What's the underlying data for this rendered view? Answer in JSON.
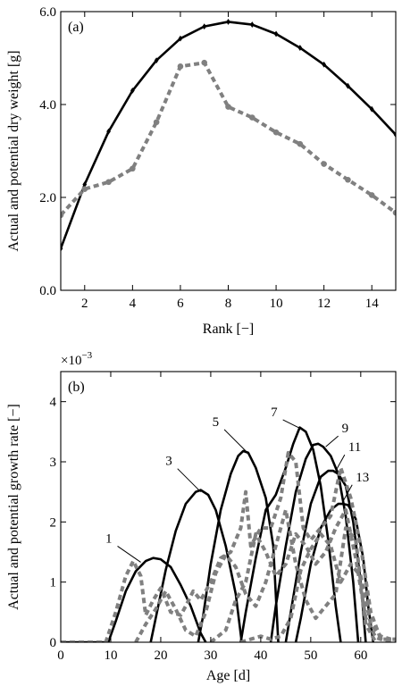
{
  "chart_data": [
    {
      "type": "line",
      "panel_label": "(a)",
      "xlabel": "Rank [−]",
      "ylabel": "Actual and potential dry weight [g]",
      "xlim": [
        1,
        15
      ],
      "ylim": [
        0,
        6
      ],
      "xticks": [
        2,
        4,
        6,
        8,
        10,
        12,
        14
      ],
      "yticks": [
        0,
        2,
        4,
        6
      ],
      "ytick_labels": [
        "0.0",
        "2.0",
        "4.0",
        "6.0"
      ],
      "grid": false,
      "series": [
        {
          "style": "solid",
          "color": "#000000",
          "x": [
            1,
            2,
            3,
            4,
            5,
            6,
            7,
            8,
            9,
            10,
            11,
            12,
            13,
            14,
            15
          ],
          "y": [
            0.9,
            2.28,
            3.42,
            4.3,
            4.95,
            5.42,
            5.68,
            5.78,
            5.72,
            5.52,
            5.22,
            4.86,
            4.4,
            3.9,
            3.35
          ]
        },
        {
          "style": "dashed",
          "color": "#808080",
          "x": [
            1,
            2,
            3,
            4,
            5,
            6,
            7,
            8,
            9,
            10,
            11,
            12,
            13,
            14,
            15
          ],
          "y": [
            1.62,
            2.18,
            2.33,
            2.62,
            3.62,
            4.82,
            4.9,
            3.95,
            3.72,
            3.4,
            3.15,
            2.72,
            2.38,
            2.05,
            1.67
          ]
        }
      ]
    },
    {
      "type": "line",
      "panel_label": "(b)",
      "xlabel": "Age [d]",
      "ylabel": "Actual and potential growth rate [−]",
      "y_multiplier": "×10",
      "y_multiplier_exp": "−3",
      "xlim": [
        0,
        67
      ],
      "ylim": [
        0,
        4.5
      ],
      "xticks": [
        0,
        10,
        20,
        30,
        40,
        50,
        60
      ],
      "yticks": [
        0,
        1,
        2,
        3,
        4
      ],
      "grid": false,
      "annotations": [
        {
          "text": "1",
          "x": 16,
          "y": 1.33
        },
        {
          "text": "3",
          "x": 28,
          "y": 2.5
        },
        {
          "text": "5",
          "x": 37,
          "y": 3.18
        },
        {
          "text": "7",
          "x": 48,
          "y": 3.55
        },
        {
          "text": "9",
          "x": 53,
          "y": 3.25
        },
        {
          "text": "11",
          "x": 55,
          "y": 2.85
        },
        {
          "text": "13",
          "x": 56.5,
          "y": 2.35
        }
      ],
      "series": [
        {
          "style": "solid",
          "color": "#000000",
          "x": [
            0,
            9.5,
            11,
            13,
            15,
            17,
            18.5,
            20,
            22,
            24,
            26,
            28,
            29
          ],
          "y": [
            0,
            0,
            0.35,
            0.85,
            1.18,
            1.35,
            1.4,
            1.38,
            1.25,
            0.95,
            0.6,
            0.15,
            0
          ]
        },
        {
          "style": "solid",
          "color": "#000000",
          "x": [
            18,
            19,
            21,
            23,
            25,
            27,
            28,
            29.5,
            31,
            33,
            35,
            36.2
          ],
          "y": [
            0,
            0.4,
            1.2,
            1.85,
            2.3,
            2.5,
            2.53,
            2.45,
            2.2,
            1.6,
            0.8,
            0
          ]
        },
        {
          "style": "solid",
          "color": "#000000",
          "x": [
            27.5,
            28.5,
            30,
            32,
            34,
            35.5,
            36.5,
            37.5,
            39,
            41,
            42.5,
            43.5
          ],
          "y": [
            0,
            0.45,
            1.3,
            2.2,
            2.8,
            3.1,
            3.18,
            3.15,
            2.9,
            2.4,
            1.6,
            0
          ]
        },
        {
          "style": "solid",
          "color": "#000000",
          "x": [
            36,
            37,
            39,
            41,
            43,
            45,
            46.5,
            47.8,
            49,
            50.5,
            52,
            53.5,
            55,
            56
          ],
          "y": [
            0,
            0.5,
            1.4,
            2.2,
            2.45,
            2.9,
            3.3,
            3.57,
            3.5,
            3.2,
            2.6,
            1.7,
            0.6,
            0
          ]
        },
        {
          "style": "solid",
          "color": "#000000",
          "x": [
            42,
            43,
            45,
            47,
            49,
            50.5,
            51.5,
            52.5,
            54,
            55.5,
            57,
            58.5,
            59.5
          ],
          "y": [
            0,
            0.6,
            1.6,
            2.5,
            3.05,
            3.28,
            3.3,
            3.25,
            3.1,
            2.8,
            2.1,
            1.0,
            0
          ]
        },
        {
          "style": "solid",
          "color": "#000000",
          "x": [
            45,
            46,
            48,
            50,
            52,
            53.5,
            54.5,
            55.5,
            57,
            58.5,
            60,
            61
          ],
          "y": [
            0,
            0.5,
            1.5,
            2.3,
            2.75,
            2.85,
            2.85,
            2.8,
            2.6,
            2.0,
            1.0,
            0
          ]
        },
        {
          "style": "solid",
          "color": "#000000",
          "x": [
            47,
            48,
            50,
            52,
            54,
            55.5,
            56.5,
            57.5,
            59,
            60.5,
            61.5,
            62.5
          ],
          "y": [
            0,
            0.4,
            1.3,
            1.9,
            2.2,
            2.3,
            2.3,
            2.28,
            2.05,
            1.4,
            0.6,
            0
          ]
        },
        {
          "style": "dashed",
          "color": "#808080",
          "x": [
            0,
            9,
            11,
            13,
            14.5,
            16,
            17,
            18.5,
            20,
            22,
            24,
            25,
            26.5,
            28,
            30,
            32,
            34,
            36,
            37,
            38,
            40,
            42,
            44,
            45.5,
            47,
            48.5,
            50,
            52,
            54,
            56,
            58,
            60,
            62,
            64,
            67
          ],
          "y": [
            0,
            0,
            0.5,
            1.1,
            1.35,
            1.1,
            0.45,
            0.7,
            0.9,
            0.5,
            0.45,
            0.6,
            0.85,
            0.7,
            1.0,
            1.4,
            1.5,
            1.9,
            2.5,
            1.6,
            1.9,
            1.9,
            2.4,
            3.15,
            3.0,
            1.9,
            1.7,
            1.9,
            2.1,
            2.9,
            2.4,
            1.6,
            0.5,
            0.05,
            0.05
          ]
        },
        {
          "style": "dashed",
          "color": "#808080",
          "x": [
            15,
            17,
            19,
            21,
            23,
            25,
            27,
            29,
            31,
            33,
            35,
            37,
            39,
            41,
            43,
            45,
            47,
            49,
            51,
            53,
            55,
            57,
            59,
            61,
            63
          ],
          "y": [
            0,
            0.3,
            0.55,
            0.85,
            0.55,
            0.2,
            0.1,
            0.5,
            1.15,
            1.45,
            1.25,
            0.8,
            0.6,
            1.0,
            1.6,
            2.2,
            1.3,
            0.7,
            0.4,
            0.6,
            0.8,
            1.9,
            1.7,
            0.3,
            0
          ]
        },
        {
          "style": "dashed",
          "color": "#808080",
          "x": [
            30,
            33,
            35,
            37,
            39,
            41,
            43,
            45,
            47,
            49,
            51,
            53,
            55,
            57,
            59,
            61,
            63,
            65,
            67
          ],
          "y": [
            0,
            0.2,
            0.7,
            1.0,
            1.8,
            1.5,
            1.1,
            1.3,
            1.8,
            1.6,
            1.3,
            1.5,
            1.9,
            2.2,
            1.4,
            0.4,
            0.08,
            0.02,
            0
          ]
        },
        {
          "style": "dashed",
          "color": "#808080",
          "x": [
            36,
            38,
            40,
            42,
            44,
            46,
            48,
            50,
            52,
            54,
            56,
            58,
            60,
            62,
            64,
            66,
            67
          ],
          "y": [
            0,
            0.05,
            0.1,
            0.05,
            0.1,
            0.4,
            1.2,
            1.55,
            1.8,
            1.6,
            1.0,
            1.3,
            1.1,
            0.3,
            0.1,
            0.05,
            0.05
          ]
        }
      ]
    }
  ]
}
